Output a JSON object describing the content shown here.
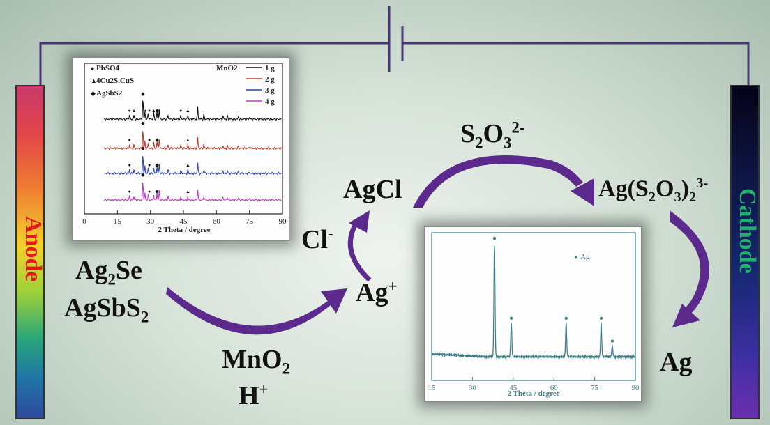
{
  "electrodes": {
    "anode": "Anode",
    "cathode": "Cathode"
  },
  "species": {
    "ag2se_main": "Ag",
    "ag2se_sub": "2",
    "ag2se_tail": "Se",
    "agsbs2_main": "AgSbS",
    "agsbs2_sub": "2",
    "mno2_main": "MnO",
    "mno2_sub": "2",
    "h_main": "H",
    "h_sup": "+",
    "agplus_main": "Ag",
    "agplus_sup": "+",
    "cl_main": "Cl",
    "cl_sup": "-",
    "agcl": "AgCl",
    "s2o3_a": "S",
    "s2o3_b": "2",
    "s2o3_c": "O",
    "s2o3_d": "3",
    "s2o3_sup": "2-",
    "complex_a": "Ag(S",
    "complex_b": "2",
    "complex_c": "O",
    "complex_d": "3",
    "complex_e": ")",
    "complex_f": "2",
    "complex_sup": "3-",
    "ag": "Ag"
  },
  "colors": {
    "arrow": "#5b2a8c",
    "wire": "#4a3575",
    "xrd_black": "#111111",
    "xrd_red": "#c0392b",
    "xrd_blue": "#2d3fb0",
    "xrd_magenta": "#c43bc4",
    "xrd_teal": "#3f7f88"
  },
  "chart_data": [
    {
      "type": "line",
      "xlabel": "2 Theta / degree",
      "xlim": [
        0,
        90
      ],
      "x_ticks": [
        "0",
        "15",
        "30",
        "45",
        "60",
        "75",
        "90"
      ],
      "legend_title": "MnO2",
      "series": [
        {
          "name": "1 g",
          "color": "#111111"
        },
        {
          "name": "2 g",
          "color": "#c0392b"
        },
        {
          "name": "3 g",
          "color": "#2d3fb0"
        },
        {
          "name": "4 g",
          "color": "#c43bc4"
        }
      ],
      "phase_labels": [
        "PbSO4",
        "4Cu2S.CuS",
        "AgSbS2"
      ]
    },
    {
      "type": "line",
      "xlabel": "2 Theta / degree",
      "xlim": [
        15,
        90
      ],
      "x_ticks": [
        "15",
        "30",
        "45",
        "60",
        "75",
        "90"
      ],
      "legend": "Ag",
      "peaks": [
        {
          "x": 38.1,
          "y": 1.0
        },
        {
          "x": 44.3,
          "y": 0.3
        },
        {
          "x": 64.5,
          "y": 0.3
        },
        {
          "x": 77.4,
          "y": 0.3
        },
        {
          "x": 81.5,
          "y": 0.1
        }
      ]
    }
  ]
}
